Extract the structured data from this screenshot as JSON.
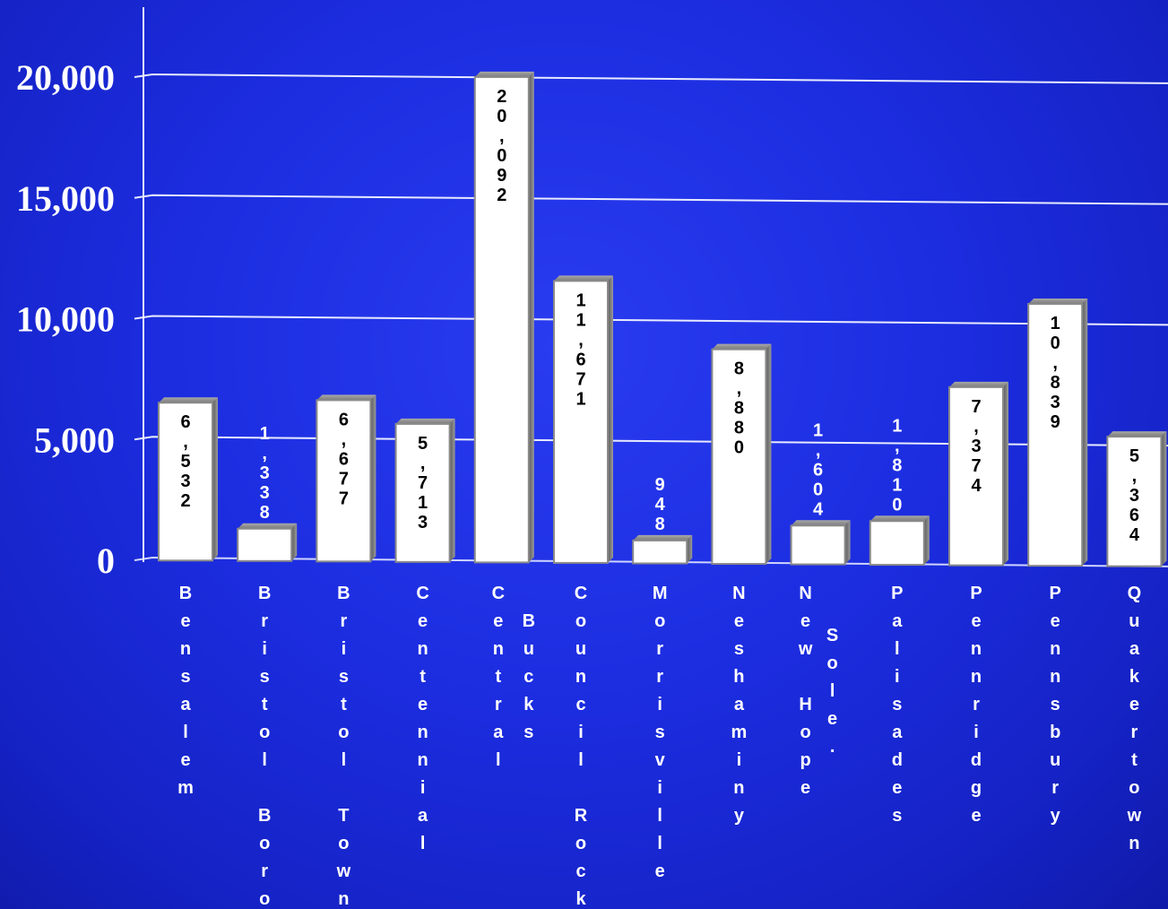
{
  "chart_data": {
    "type": "bar",
    "title": "",
    "xlabel": "",
    "ylabel": "",
    "ylim": [
      0,
      20000
    ],
    "yticks": [
      0,
      5000,
      10000,
      15000,
      20000
    ],
    "ytick_labels": [
      "0",
      "5,000",
      "10,000",
      "15,000",
      "20,000"
    ],
    "grid": true,
    "categories": [
      "Bensalem",
      "Bristol Boro",
      "Bristol Town",
      "Centennial",
      "Central Bucks",
      "Council Rock",
      "Morrisville",
      "Neshaminy",
      "New Hope Sole.",
      "Palisades",
      "Pennridge",
      "Pennsbury",
      "Quakertown"
    ],
    "values": [
      6532,
      1338,
      6677,
      5713,
      20092,
      11671,
      948,
      8880,
      1604,
      1810,
      7374,
      10839,
      5364
    ],
    "value_labels": [
      "6,532",
      "1,338",
      "6,677",
      "5,713",
      "20,092",
      "11,671",
      "948",
      "8,880",
      "1,604",
      "1,810",
      "7,374",
      "10,839",
      "5,364"
    ]
  },
  "colors": {
    "background": "#1c2de0",
    "bar_fill": "#ffffff",
    "bar_edge": "#8a8a8a",
    "text": "#ffffff",
    "value_text_inside": "#000000"
  }
}
